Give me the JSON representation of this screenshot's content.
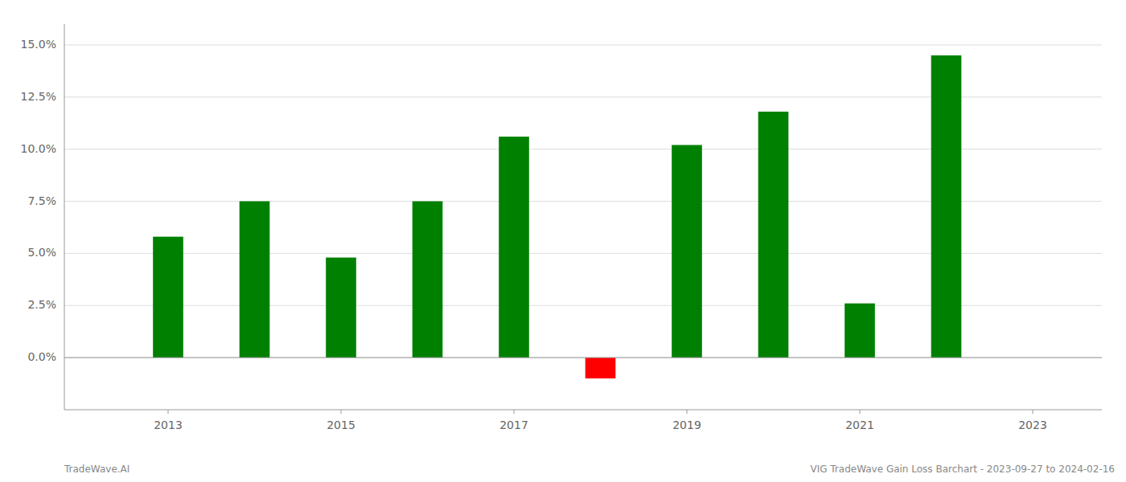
{
  "chart_data": {
    "type": "bar",
    "x": [
      2013,
      2014,
      2015,
      2016,
      2017,
      2018,
      2019,
      2020,
      2021,
      2022
    ],
    "values": [
      0.058,
      0.075,
      0.048,
      0.075,
      0.106,
      -0.01,
      0.102,
      0.118,
      0.026,
      0.145
    ],
    "colors": [
      "#008000",
      "#008000",
      "#008000",
      "#008000",
      "#008000",
      "#ff0000",
      "#008000",
      "#008000",
      "#008000",
      "#008000"
    ],
    "xlim": [
      2011.8,
      2023.8
    ],
    "xticks": [
      2013,
      2015,
      2017,
      2019,
      2021,
      2023
    ],
    "ylim": [
      -0.025,
      0.16
    ],
    "yticks": [
      {
        "value": 0.0,
        "label": "0.0%"
      },
      {
        "value": 0.025,
        "label": "2.5%"
      },
      {
        "value": 0.05,
        "label": "5.0%"
      },
      {
        "value": 0.075,
        "label": "7.5%"
      },
      {
        "value": 0.1,
        "label": "10.0%"
      },
      {
        "value": 0.125,
        "label": "12.5%"
      },
      {
        "value": 0.15,
        "label": "15.0%"
      }
    ],
    "grid": true,
    "annotations": [
      "TradeWave.AI",
      "VIG TradeWave Gain Loss Barchart - 2023-09-27 to 2024-02-16"
    ]
  }
}
